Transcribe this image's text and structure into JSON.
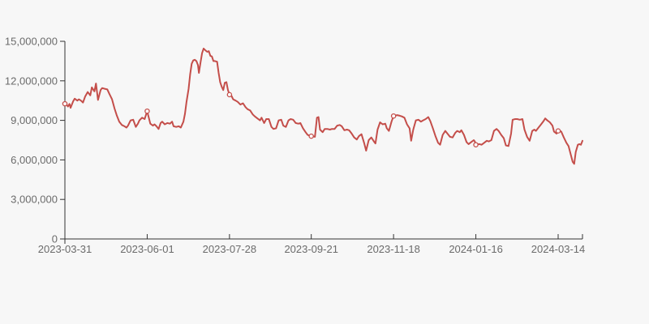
{
  "page": {
    "background_color": "#f7f7f7"
  },
  "chart_data": {
    "type": "line",
    "title": "",
    "legend": "none",
    "grid": false,
    "line_color": "#c44e4a",
    "marker_fill": "#fcfcfc",
    "axis_color": "#333333",
    "tick_label_color": "#6b6b6b",
    "ylabel": "",
    "xlabel": "",
    "ylim": [
      0,
      15000000
    ],
    "value_unit_multiplier": 1000000,
    "y_ticks": [
      {
        "value": 0,
        "label": "0"
      },
      {
        "value": 3000000,
        "label": "3,000,000"
      },
      {
        "value": 6000000,
        "label": "6,000,000"
      },
      {
        "value": 9000000,
        "label": "9,000,000"
      },
      {
        "value": 12000000,
        "label": "12,000,000"
      },
      {
        "value": 15000000,
        "label": "15,000,000"
      }
    ],
    "x_ticks": [
      {
        "t": 0.0,
        "label": "2023-03-31"
      },
      {
        "t": 0.159,
        "label": "2023-06-01"
      },
      {
        "t": 0.318,
        "label": "2023-07-28"
      },
      {
        "t": 0.476,
        "label": "2023-09-21"
      },
      {
        "t": 0.635,
        "label": "2023-11-18"
      },
      {
        "t": 0.794,
        "label": "2024-01-16"
      },
      {
        "t": 0.953,
        "label": "2024-03-14"
      }
    ],
    "markers_at_ticks": [
      [
        0.0,
        10.26
      ],
      [
        0.159,
        9.7
      ],
      [
        0.318,
        10.95
      ],
      [
        0.476,
        7.8
      ],
      [
        0.635,
        9.33
      ],
      [
        0.794,
        7.15
      ],
      [
        0.953,
        8.2
      ]
    ],
    "points": [
      [
        0.0,
        10.26
      ],
      [
        0.003,
        10.2
      ],
      [
        0.006,
        10.05
      ],
      [
        0.009,
        10.25
      ],
      [
        0.011,
        9.95
      ],
      [
        0.016,
        10.45
      ],
      [
        0.019,
        10.65
      ],
      [
        0.024,
        10.5
      ],
      [
        0.027,
        10.6
      ],
      [
        0.031,
        10.5
      ],
      [
        0.035,
        10.35
      ],
      [
        0.039,
        10.8
      ],
      [
        0.044,
        11.15
      ],
      [
        0.049,
        10.9
      ],
      [
        0.052,
        11.5
      ],
      [
        0.057,
        11.2
      ],
      [
        0.06,
        11.8
      ],
      [
        0.064,
        10.55
      ],
      [
        0.069,
        11.3
      ],
      [
        0.072,
        11.45
      ],
      [
        0.077,
        11.4
      ],
      [
        0.082,
        11.35
      ],
      [
        0.086,
        11.0
      ],
      [
        0.091,
        10.6
      ],
      [
        0.096,
        9.9
      ],
      [
        0.1,
        9.4
      ],
      [
        0.105,
        8.9
      ],
      [
        0.11,
        8.65
      ],
      [
        0.115,
        8.55
      ],
      [
        0.119,
        8.45
      ],
      [
        0.122,
        8.6
      ],
      [
        0.127,
        9.0
      ],
      [
        0.132,
        9.05
      ],
      [
        0.137,
        8.5
      ],
      [
        0.141,
        8.75
      ],
      [
        0.144,
        9.0
      ],
      [
        0.149,
        9.2
      ],
      [
        0.154,
        9.1
      ],
      [
        0.159,
        9.7
      ],
      [
        0.165,
        8.75
      ],
      [
        0.17,
        8.6
      ],
      [
        0.173,
        8.7
      ],
      [
        0.177,
        8.55
      ],
      [
        0.181,
        8.35
      ],
      [
        0.185,
        8.8
      ],
      [
        0.188,
        8.9
      ],
      [
        0.193,
        8.7
      ],
      [
        0.198,
        8.8
      ],
      [
        0.203,
        8.75
      ],
      [
        0.207,
        8.9
      ],
      [
        0.21,
        8.55
      ],
      [
        0.215,
        8.5
      ],
      [
        0.22,
        8.55
      ],
      [
        0.224,
        8.45
      ],
      [
        0.229,
        8.9
      ],
      [
        0.232,
        9.5
      ],
      [
        0.235,
        10.4
      ],
      [
        0.239,
        11.4
      ],
      [
        0.242,
        12.5
      ],
      [
        0.245,
        13.3
      ],
      [
        0.248,
        13.55
      ],
      [
        0.251,
        13.6
      ],
      [
        0.254,
        13.5
      ],
      [
        0.257,
        13.2
      ],
      [
        0.259,
        12.6
      ],
      [
        0.262,
        13.4
      ],
      [
        0.265,
        14.1
      ],
      [
        0.268,
        14.45
      ],
      [
        0.272,
        14.3
      ],
      [
        0.275,
        14.2
      ],
      [
        0.278,
        14.25
      ],
      [
        0.281,
        13.9
      ],
      [
        0.284,
        13.85
      ],
      [
        0.287,
        13.5
      ],
      [
        0.29,
        13.5
      ],
      [
        0.294,
        13.45
      ],
      [
        0.297,
        12.6
      ],
      [
        0.3,
        11.9
      ],
      [
        0.303,
        11.55
      ],
      [
        0.306,
        11.3
      ],
      [
        0.309,
        11.85
      ],
      [
        0.312,
        11.9
      ],
      [
        0.315,
        11.3
      ],
      [
        0.318,
        10.95
      ],
      [
        0.322,
        10.85
      ],
      [
        0.325,
        10.6
      ],
      [
        0.33,
        10.5
      ],
      [
        0.334,
        10.4
      ],
      [
        0.339,
        10.2
      ],
      [
        0.344,
        10.3
      ],
      [
        0.349,
        10.0
      ],
      [
        0.353,
        9.85
      ],
      [
        0.358,
        9.75
      ],
      [
        0.363,
        9.45
      ],
      [
        0.367,
        9.3
      ],
      [
        0.372,
        9.15
      ],
      [
        0.377,
        9.0
      ],
      [
        0.38,
        9.2
      ],
      [
        0.385,
        8.8
      ],
      [
        0.389,
        9.1
      ],
      [
        0.394,
        9.1
      ],
      [
        0.399,
        8.5
      ],
      [
        0.403,
        8.35
      ],
      [
        0.408,
        8.4
      ],
      [
        0.413,
        9.0
      ],
      [
        0.418,
        9.05
      ],
      [
        0.422,
        8.6
      ],
      [
        0.427,
        8.5
      ],
      [
        0.432,
        9.0
      ],
      [
        0.436,
        9.1
      ],
      [
        0.441,
        9.05
      ],
      [
        0.446,
        8.8
      ],
      [
        0.451,
        8.75
      ],
      [
        0.455,
        8.8
      ],
      [
        0.46,
        8.4
      ],
      [
        0.465,
        8.1
      ],
      [
        0.469,
        7.9
      ],
      [
        0.472,
        7.85
      ],
      [
        0.476,
        7.8
      ],
      [
        0.483,
        7.75
      ],
      [
        0.487,
        9.2
      ],
      [
        0.49,
        9.25
      ],
      [
        0.493,
        8.3
      ],
      [
        0.498,
        8.1
      ],
      [
        0.502,
        8.35
      ],
      [
        0.507,
        8.35
      ],
      [
        0.512,
        8.3
      ],
      [
        0.516,
        8.35
      ],
      [
        0.521,
        8.35
      ],
      [
        0.526,
        8.6
      ],
      [
        0.531,
        8.65
      ],
      [
        0.535,
        8.55
      ],
      [
        0.54,
        8.25
      ],
      [
        0.545,
        8.3
      ],
      [
        0.549,
        8.25
      ],
      [
        0.554,
        8.0
      ],
      [
        0.559,
        7.7
      ],
      [
        0.564,
        7.55
      ],
      [
        0.568,
        7.8
      ],
      [
        0.573,
        7.95
      ],
      [
        0.578,
        7.3
      ],
      [
        0.582,
        6.7
      ],
      [
        0.587,
        7.5
      ],
      [
        0.592,
        7.7
      ],
      [
        0.597,
        7.4
      ],
      [
        0.6,
        7.25
      ],
      [
        0.604,
        8.3
      ],
      [
        0.609,
        8.85
      ],
      [
        0.614,
        8.7
      ],
      [
        0.619,
        8.75
      ],
      [
        0.622,
        8.4
      ],
      [
        0.626,
        8.2
      ],
      [
        0.631,
        8.9
      ],
      [
        0.635,
        9.33
      ],
      [
        0.642,
        9.4
      ],
      [
        0.647,
        9.35
      ],
      [
        0.651,
        9.3
      ],
      [
        0.656,
        9.2
      ],
      [
        0.661,
        8.7
      ],
      [
        0.666,
        8.4
      ],
      [
        0.669,
        7.45
      ],
      [
        0.673,
        8.3
      ],
      [
        0.678,
        9.0
      ],
      [
        0.683,
        9.05
      ],
      [
        0.688,
        8.9
      ],
      [
        0.692,
        9.0
      ],
      [
        0.697,
        9.1
      ],
      [
        0.702,
        9.25
      ],
      [
        0.706,
        8.95
      ],
      [
        0.711,
        8.4
      ],
      [
        0.716,
        7.8
      ],
      [
        0.721,
        7.3
      ],
      [
        0.725,
        7.15
      ],
      [
        0.73,
        7.9
      ],
      [
        0.735,
        8.2
      ],
      [
        0.739,
        8.0
      ],
      [
        0.744,
        7.75
      ],
      [
        0.749,
        7.7
      ],
      [
        0.754,
        8.05
      ],
      [
        0.758,
        8.2
      ],
      [
        0.763,
        8.1
      ],
      [
        0.766,
        8.25
      ],
      [
        0.771,
        7.9
      ],
      [
        0.776,
        7.35
      ],
      [
        0.78,
        7.2
      ],
      [
        0.785,
        7.35
      ],
      [
        0.79,
        7.5
      ],
      [
        0.792,
        7.4
      ],
      [
        0.794,
        7.15
      ],
      [
        0.801,
        7.2
      ],
      [
        0.805,
        7.15
      ],
      [
        0.81,
        7.3
      ],
      [
        0.815,
        7.45
      ],
      [
        0.819,
        7.4
      ],
      [
        0.824,
        7.5
      ],
      [
        0.829,
        8.2
      ],
      [
        0.834,
        8.35
      ],
      [
        0.838,
        8.2
      ],
      [
        0.843,
        7.9
      ],
      [
        0.848,
        7.65
      ],
      [
        0.852,
        7.1
      ],
      [
        0.857,
        7.05
      ],
      [
        0.862,
        8.0
      ],
      [
        0.865,
        9.05
      ],
      [
        0.87,
        9.1
      ],
      [
        0.874,
        9.1
      ],
      [
        0.879,
        9.05
      ],
      [
        0.884,
        9.1
      ],
      [
        0.888,
        8.3
      ],
      [
        0.893,
        7.75
      ],
      [
        0.898,
        7.45
      ],
      [
        0.903,
        8.2
      ],
      [
        0.907,
        8.3
      ],
      [
        0.91,
        8.2
      ],
      [
        0.915,
        8.45
      ],
      [
        0.92,
        8.7
      ],
      [
        0.925,
        8.95
      ],
      [
        0.928,
        9.15
      ],
      [
        0.932,
        9.0
      ],
      [
        0.937,
        8.85
      ],
      [
        0.942,
        8.6
      ],
      [
        0.945,
        8.15
      ],
      [
        0.95,
        8.0
      ],
      [
        0.953,
        8.2
      ],
      [
        0.959,
        8.15
      ],
      [
        0.964,
        7.7
      ],
      [
        0.969,
        7.3
      ],
      [
        0.973,
        7.05
      ],
      [
        0.978,
        6.3
      ],
      [
        0.981,
        5.85
      ],
      [
        0.984,
        5.7
      ],
      [
        0.987,
        6.6
      ],
      [
        0.991,
        7.15
      ],
      [
        0.994,
        7.2
      ],
      [
        0.997,
        7.15
      ],
      [
        1.0,
        7.45
      ]
    ]
  }
}
